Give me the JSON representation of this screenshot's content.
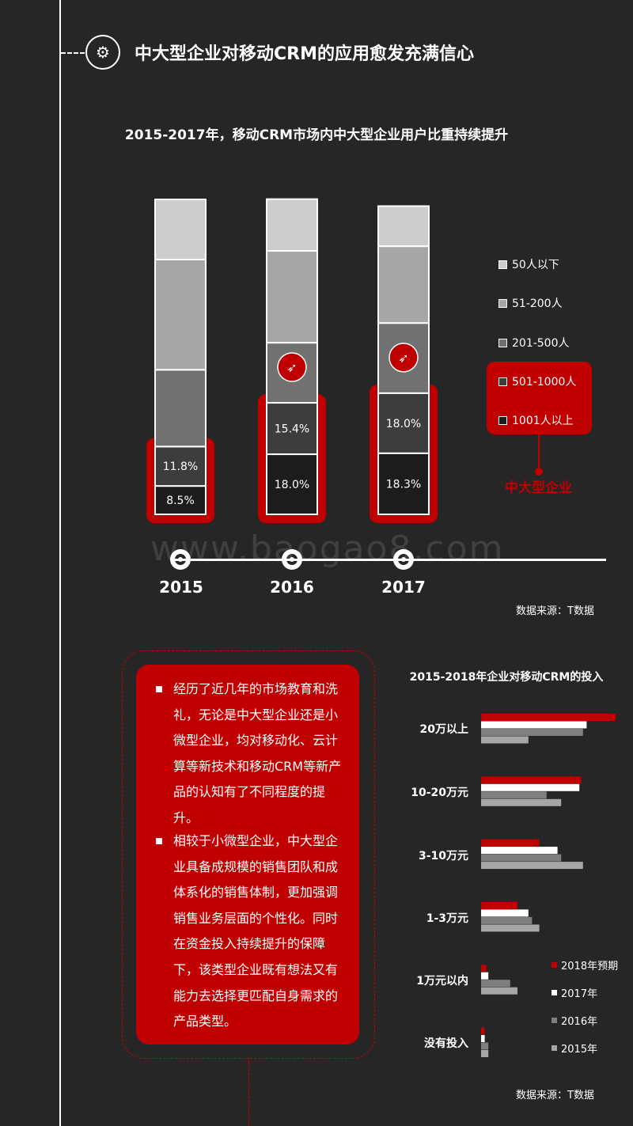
{
  "header": {
    "title": "中大型企业对移动CRM的应用愈发充满信心"
  },
  "chart1": {
    "title": "2015-2017年，移动CRM市场内中大型企业用户比重持续提升",
    "legend": [
      "50人以下",
      "51-200人",
      "201-500人",
      "501-1000人",
      "1001人以上"
    ],
    "highlight_label": "中大型企业",
    "source": "数据来源：T数据",
    "colors": {
      "50人以下": "#cdcdcd",
      "51-200人": "#a6a6a6",
      "201-500人": "#717171",
      "501-1000人": "#3d3d3d",
      "1001人以上": "#1c1c1c",
      "accent": "#c00000"
    }
  },
  "chart_data": [
    {
      "type": "bar",
      "title": "2015-2017年，移动CRM市场内中大型企业用户比重持续提升",
      "categories": [
        "2015",
        "2016",
        "2017"
      ],
      "stacked": true,
      "series": [
        {
          "name": "1001人以上",
          "values": [
            8.5,
            18.0,
            18.3
          ],
          "labels": [
            "8.5%",
            "18.0%",
            "18.3%"
          ]
        },
        {
          "name": "501-1000人",
          "values": [
            11.8,
            15.4,
            18.0
          ],
          "labels": [
            "11.8%",
            "15.4%",
            "18.0%"
          ]
        },
        {
          "name": "201-500人",
          "values": [
            23.0,
            18.0,
            21.0
          ]
        },
        {
          "name": "51-200人",
          "values": [
            33.0,
            27.5,
            23.0
          ]
        },
        {
          "name": "50人以下",
          "values": [
            18.0,
            15.5,
            12.0
          ]
        }
      ],
      "legend_position": "right"
    },
    {
      "type": "bar",
      "orientation": "horizontal",
      "title": "2015-2018年企业对移动CRM的投入",
      "categories": [
        "20万以上",
        "10-20万元",
        "3-10万元",
        "1-3万元",
        "1万元以内",
        "没有投入"
      ],
      "series": [
        {
          "name": "2018年预期",
          "values": [
            37,
            27.5,
            16,
            10,
            1.5,
            1
          ],
          "color": "#c00000"
        },
        {
          "name": "2017年",
          "values": [
            29,
            27,
            21,
            13,
            2,
            1
          ],
          "color": "#ffffff"
        },
        {
          "name": "2016年",
          "values": [
            28,
            18,
            22,
            14,
            8,
            2
          ],
          "color": "#7f7f7f"
        },
        {
          "name": "2015年",
          "values": [
            13,
            22,
            28,
            16,
            10,
            2
          ],
          "color": "#a6a6a6"
        }
      ],
      "legend_position": "bottom-right",
      "source": "数据来源：T数据"
    }
  ],
  "text_panel": {
    "paragraphs": [
      "经历了近几年的市场教育和洗礼，无论是中大型企业还是小微型企业，均对移动化、云计算等新技术和移动CRM等新产品的认知有了不同程度的提升。",
      "相较于小微型企业，中大型企业具备成规模的销售团队和成体系化的销售体制，更加强调销售业务层面的个性化。同时在资金投入持续提升的保障下，该类型企业既有想法又有能力去选择更匹配自身需求的产品类型。"
    ]
  },
  "chart2": {
    "title": "2015-2018年企业对移动CRM的投入",
    "categories": [
      "20万以上",
      "10-20万元",
      "3-10万元",
      "1-3万元",
      "1万元以内",
      "没有投入"
    ],
    "legend": [
      "2018年预期",
      "2017年",
      "2016年",
      "2015年"
    ],
    "source": "数据来源：T数据"
  },
  "watermark": "www.baogao8.com"
}
